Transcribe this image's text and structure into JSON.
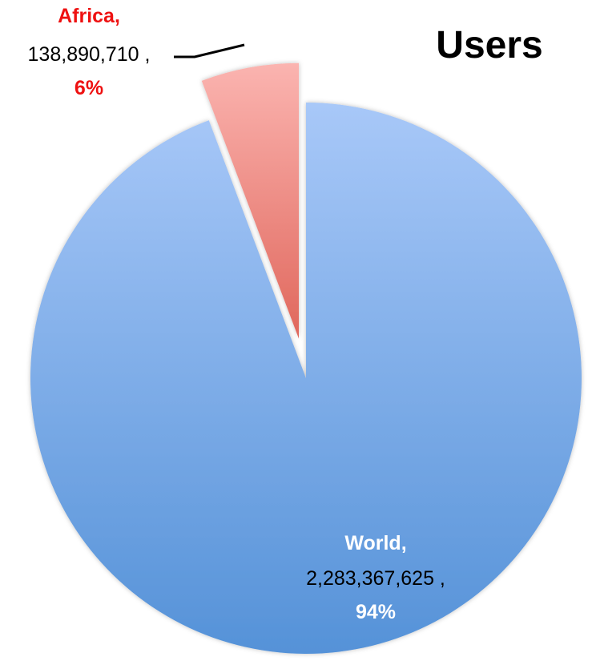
{
  "chart_data": {
    "type": "pie",
    "title": "Users",
    "slices": [
      {
        "name": "World",
        "value": 2283367625,
        "value_label": "2,283,367,625 ,",
        "percent_label": "94%",
        "name_label": "World,",
        "exploded": false,
        "color_light": "#a8c8f8",
        "color_dark": "#5592d8",
        "name_color": "#ffffff",
        "value_color": "#000000",
        "percent_color": "#ffffff"
      },
      {
        "name": "Africa",
        "value": 138890710,
        "value_label": "138,890,710 ,",
        "percent_label": "6%",
        "name_label": "Africa,",
        "exploded": true,
        "color_light": "#fbb4b0",
        "color_dark": "#e0675c",
        "name_color": "#ee1111",
        "value_color": "#000000",
        "percent_color": "#ee1111"
      }
    ]
  }
}
